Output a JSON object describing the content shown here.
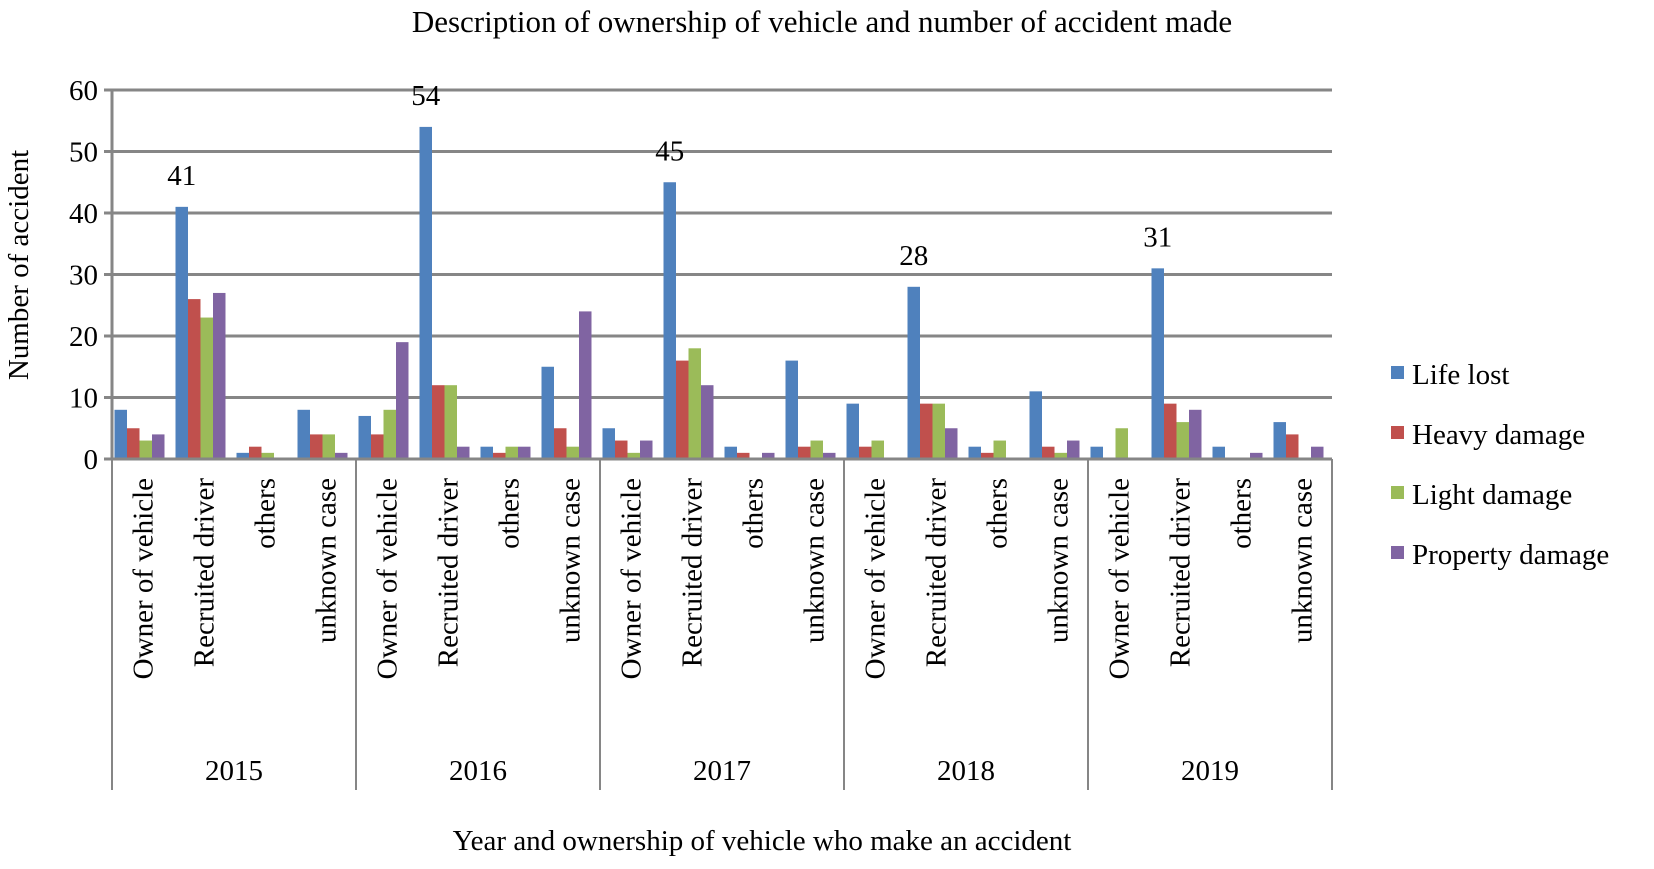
{
  "chart_data": {
    "type": "bar",
    "title": "Description of ownership of vehicle and number of  accident made",
    "xlabel": "Year and ownership of vehicle who make an accident",
    "ylabel": "Number of accident",
    "ylim": [
      0,
      60
    ],
    "yticks": [
      0,
      10,
      20,
      30,
      40,
      50,
      60
    ],
    "grid": true,
    "legend_position": "right",
    "groups": [
      "2015",
      "2016",
      "2017",
      "2018",
      "2019"
    ],
    "subcategories": [
      "Owner of vehicle",
      "Recruited driver",
      "others",
      "unknown case"
    ],
    "series": [
      {
        "name": "Life lost",
        "color": "#4F81BD",
        "values": [
          8,
          41,
          1,
          8,
          7,
          54,
          2,
          15,
          5,
          45,
          2,
          16,
          9,
          28,
          2,
          11,
          2,
          31,
          2,
          6
        ]
      },
      {
        "name": "Heavy damage",
        "color": "#C0504D",
        "values": [
          5,
          26,
          2,
          4,
          4,
          12,
          1,
          5,
          3,
          16,
          1,
          2,
          2,
          9,
          1,
          2,
          0,
          9,
          0,
          4
        ]
      },
      {
        "name": "Light damage",
        "color": "#9BBB59",
        "values": [
          3,
          23,
          1,
          4,
          8,
          12,
          2,
          2,
          1,
          18,
          0,
          3,
          3,
          9,
          3,
          1,
          5,
          6,
          0,
          0
        ]
      },
      {
        "name": "Property damage",
        "color": "#8064A2",
        "values": [
          4,
          27,
          0,
          1,
          19,
          2,
          2,
          24,
          3,
          12,
          1,
          1,
          0,
          5,
          0,
          3,
          0,
          8,
          1,
          2
        ]
      }
    ],
    "data_labels": [
      {
        "series": "Life lost",
        "index": 1,
        "text": "41"
      },
      {
        "series": "Life lost",
        "index": 5,
        "text": "54"
      },
      {
        "series": "Life lost",
        "index": 9,
        "text": "45"
      },
      {
        "series": "Life lost",
        "index": 13,
        "text": "28"
      },
      {
        "series": "Life lost",
        "index": 17,
        "text": "31"
      }
    ]
  }
}
